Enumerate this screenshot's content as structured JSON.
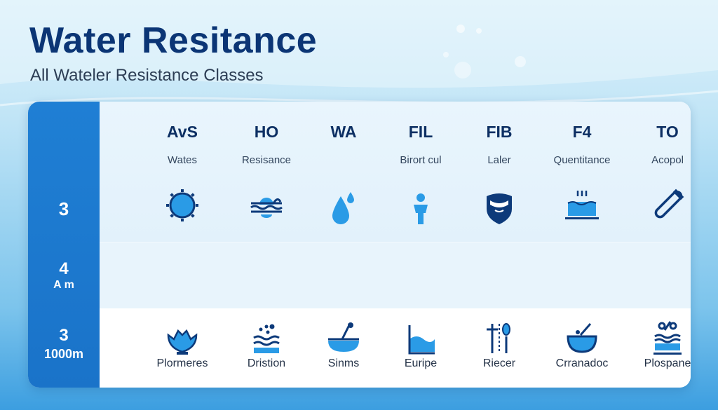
{
  "header": {
    "title": "Water Resitance",
    "subtitle": "All Wateler Resistance Classes"
  },
  "side": {
    "rows": [
      {
        "value": "3",
        "unit": ""
      },
      {
        "value": "4",
        "unit": "A m"
      },
      {
        "value": "3",
        "unit": "1000m"
      }
    ]
  },
  "columns": [
    {
      "code": "AvS",
      "label": "Wates",
      "icon": "sun-water-icon",
      "bottom_icon": "splash-bowl-icon",
      "bottom_label": "Plormeres"
    },
    {
      "code": "HO",
      "label": "Resisance",
      "icon": "swimmer-waves-icon",
      "bottom_icon": "bubbles-waves-icon",
      "bottom_label": "Dristion"
    },
    {
      "code": "WA",
      "label": "",
      "icon": "water-drops-icon",
      "bottom_icon": "boat-bowl-icon",
      "bottom_label": "Sinms"
    },
    {
      "code": "FIL",
      "label": "Birort cul",
      "icon": "person-icon",
      "bottom_icon": "water-level-icon",
      "bottom_label": "Euripe"
    },
    {
      "code": "FIB",
      "label": "Laler",
      "icon": "shield-water-icon",
      "bottom_icon": "gauge-tools-icon",
      "bottom_label": "Riecer"
    },
    {
      "code": "F4",
      "label": "Quentitance",
      "icon": "water-tank-icon",
      "bottom_icon": "mixing-bowl-icon",
      "bottom_label": "Crranadoc"
    },
    {
      "code": "TO",
      "label": "Acopol",
      "icon": "test-tube-icon",
      "bottom_icon": "percent-waves-icon",
      "bottom_label": "Plospane"
    }
  ],
  "colors": {
    "title": "#0b3575",
    "side": "#1f7fd4",
    "icon_dark": "#0d3a7a",
    "icon_light": "#2a9be6"
  }
}
